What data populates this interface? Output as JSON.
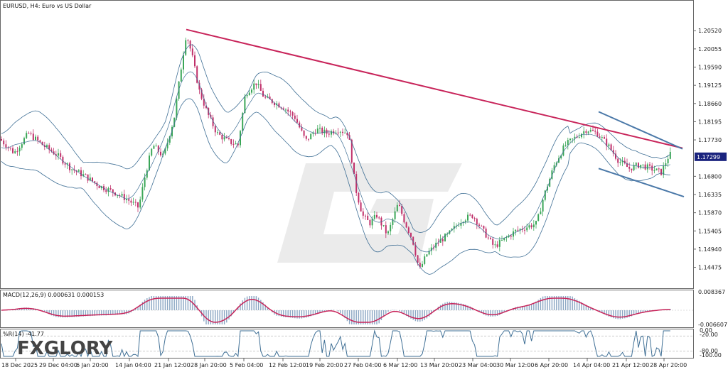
{
  "header": {
    "symbol": "EURUSD",
    "timeframe": "H4",
    "description": "Euro vs US Dollar",
    "title": "EURUSD, H4:  Euro vs US Dollar"
  },
  "watermark": {
    "brand": "FXGLORY"
  },
  "colors": {
    "candle_up": "#3aa657",
    "candle_down": "#c0306a",
    "bands": "#3f6f95",
    "trendline": "#c8245a",
    "channel": "#4a78a8",
    "macd_hist": "#8aa6c3",
    "macd_signal": "#c8245a",
    "wpr": "#3f6f95",
    "price_tag_bg": "#1a237e"
  },
  "chart_data": [
    {
      "type": "candlestick",
      "name": "price",
      "title": "EURUSD, H4:  Euro vs US Dollar",
      "ylim": [
        1.1405,
        1.2105
      ],
      "y_ticks": [
        "1.20520",
        "1.20055",
        "1.19590",
        "1.19125",
        "1.18660",
        "1.18195",
        "1.17730",
        "1.17299",
        "1.16800",
        "1.16335",
        "1.15870",
        "1.15405",
        "1.14940",
        "1.14475"
      ],
      "current_price": "1.17299",
      "x_ticks": [
        "18 Dec 2025",
        "29 Dec 04:00",
        "6 Jan 20:00",
        "14 Jan 04:00",
        "21 Jan 12:00",
        "28 Jan 20:00",
        "5 Feb 04:00",
        "12 Feb 12:00",
        "19 Feb 20:00",
        "27 Feb 04:00",
        "6 Mar 12:00",
        "13 Mar 20:00",
        "23 Mar 04:00",
        "30 Mar 12:00",
        "6 Apr 20:00",
        "14 Apr 04:00",
        "21 Apr 12:00",
        "28 Apr 20:00"
      ],
      "close_path": [
        [
          0,
          1.1775
        ],
        [
          20,
          1.174
        ],
        [
          40,
          1.179
        ],
        [
          60,
          1.176
        ],
        [
          80,
          1.1735
        ],
        [
          100,
          1.17
        ],
        [
          120,
          1.168
        ],
        [
          140,
          1.1655
        ],
        [
          160,
          1.164
        ],
        [
          180,
          1.162
        ],
        [
          195,
          1.16
        ],
        [
          205,
          1.169
        ],
        [
          215,
          1.176
        ],
        [
          230,
          1.173
        ],
        [
          245,
          1.183
        ],
        [
          255,
          1.196
        ],
        [
          262,
          1.2045
        ],
        [
          270,
          1.199
        ],
        [
          280,
          1.19
        ],
        [
          292,
          1.184
        ],
        [
          305,
          1.179
        ],
        [
          320,
          1.177
        ],
        [
          335,
          1.176
        ],
        [
          345,
          1.189
        ],
        [
          360,
          1.192
        ],
        [
          372,
          1.188
        ],
        [
          385,
          1.187
        ],
        [
          400,
          1.1855
        ],
        [
          415,
          1.183
        ],
        [
          430,
          1.177
        ],
        [
          445,
          1.18
        ],
        [
          460,
          1.179
        ],
        [
          475,
          1.18
        ],
        [
          490,
          1.179
        ],
        [
          500,
          1.165
        ],
        [
          510,
          1.158
        ],
        [
          520,
          1.156
        ],
        [
          530,
          1.158
        ],
        [
          545,
          1.153
        ],
        [
          560,
          1.161
        ],
        [
          570,
          1.156
        ],
        [
          580,
          1.152
        ],
        [
          590,
          1.144
        ],
        [
          600,
          1.148
        ],
        [
          615,
          1.151
        ],
        [
          630,
          1.153
        ],
        [
          650,
          1.157
        ],
        [
          665,
          1.158
        ],
        [
          680,
          1.154
        ],
        [
          695,
          1.15
        ],
        [
          710,
          1.152
        ],
        [
          725,
          1.154
        ],
        [
          740,
          1.155
        ],
        [
          755,
          1.156
        ],
        [
          765,
          1.163
        ],
        [
          780,
          1.171
        ],
        [
          795,
          1.176
        ],
        [
          810,
          1.178
        ],
        [
          825,
          1.18
        ],
        [
          840,
          1.179
        ],
        [
          855,
          1.176
        ],
        [
          870,
          1.172
        ],
        [
          885,
          1.17
        ],
        [
          900,
          1.171
        ],
        [
          915,
          1.17
        ],
        [
          930,
          1.169
        ],
        [
          940,
          1.173
        ],
        [
          945,
          1.174
        ]
      ],
      "bollinger": {
        "upper_offset": 0.0055,
        "lower_offset": 0.0055,
        "upper_offset_after_800": 0.003,
        "lower_offset_after_800": 0.003
      },
      "trendline": [
        [
          262,
          1.2055
        ],
        [
          960,
          1.1752
        ]
      ],
      "channel_upper": [
        [
          842,
          1.1845
        ],
        [
          960,
          1.175
        ]
      ],
      "channel_lower": [
        [
          842,
          1.17
        ],
        [
          962,
          1.1628
        ]
      ]
    },
    {
      "type": "bar",
      "name": "MACD",
      "label": "MACD(12,26,9) 0.000631 0.000153",
      "y_ticks": [
        "0.008367",
        "-0.006607"
      ],
      "zero_line": true
    },
    {
      "type": "line",
      "name": "%R",
      "label": "%R(14) -41.77",
      "y_ticks": [
        "0.00",
        "-20.00",
        "-80.00",
        "-100.00"
      ],
      "levels": [
        -20,
        -80
      ]
    }
  ]
}
